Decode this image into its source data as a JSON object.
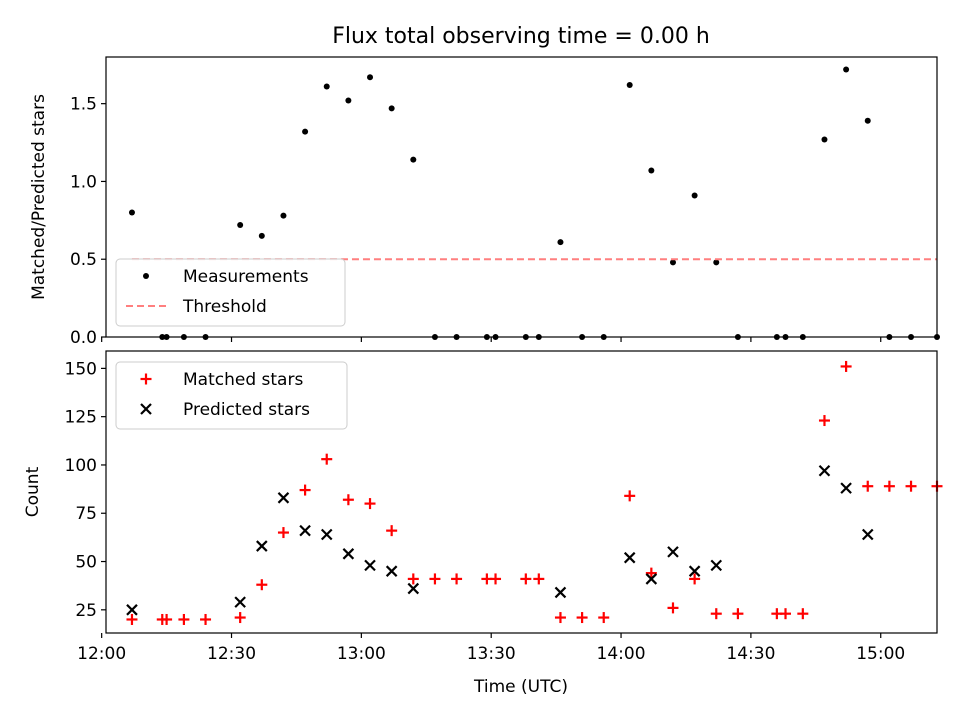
{
  "title": "Flux total observing time = 0.00 h",
  "xlabel": "Time (UTC)",
  "colors": {
    "matched": "#ff0000",
    "predicted": "#000000",
    "measurements": "#000000",
    "threshold": "#ff7f7f"
  },
  "chart_data": [
    {
      "type": "scatter",
      "title": "Flux total observing time = 0.00 h",
      "xlabel": "",
      "ylabel": "Matched/Predicted stars",
      "xlim": [
        "12:01",
        "15:13"
      ],
      "ylim": [
        0,
        1.8
      ],
      "x_ticks": [
        "12:00",
        "12:30",
        "13:00",
        "13:30",
        "14:00",
        "14:30",
        "15:00"
      ],
      "y_ticks": [
        "0.0",
        "0.5",
        "1.0",
        "1.5"
      ],
      "legend": "lower-left",
      "series": [
        {
          "name": "Measurements",
          "marker": "dot",
          "points": [
            [
              "12:07",
              0.8
            ],
            [
              "12:14",
              0
            ],
            [
              "12:15",
              0
            ],
            [
              "12:19",
              0
            ],
            [
              "12:24",
              0
            ],
            [
              "12:32",
              0.72
            ],
            [
              "12:37",
              0.65
            ],
            [
              "12:42",
              0.78
            ],
            [
              "12:47",
              1.32
            ],
            [
              "12:52",
              1.61
            ],
            [
              "12:57",
              1.52
            ],
            [
              "13:02",
              1.67
            ],
            [
              "13:07",
              1.47
            ],
            [
              "13:12",
              1.14
            ],
            [
              "13:17",
              0
            ],
            [
              "13:22",
              0
            ],
            [
              "13:29",
              0
            ],
            [
              "13:31",
              0
            ],
            [
              "13:38",
              0
            ],
            [
              "13:41",
              0
            ],
            [
              "13:46",
              0.61
            ],
            [
              "13:51",
              0
            ],
            [
              "13:56",
              0
            ],
            [
              "14:02",
              1.62
            ],
            [
              "14:07",
              1.07
            ],
            [
              "14:12",
              0.48
            ],
            [
              "14:17",
              0.91
            ],
            [
              "14:22",
              0.48
            ],
            [
              "14:27",
              0
            ],
            [
              "14:36",
              0
            ],
            [
              "14:38",
              0
            ],
            [
              "14:42",
              0
            ],
            [
              "14:47",
              1.27
            ],
            [
              "14:52",
              1.72
            ],
            [
              "14:57",
              1.39
            ],
            [
              "15:02",
              0
            ],
            [
              "15:07",
              0
            ],
            [
              "15:13",
              0
            ]
          ]
        },
        {
          "name": "Threshold",
          "style": "dashed",
          "points": [
            [
              "12:07",
              0.5
            ],
            [
              "15:13",
              0.5
            ]
          ]
        }
      ]
    },
    {
      "type": "scatter",
      "xlabel": "Time (UTC)",
      "ylabel": "Count",
      "xlim": [
        "12:01",
        "15:13"
      ],
      "ylim": [
        13,
        159
      ],
      "x_ticks": [
        "12:00",
        "12:30",
        "13:00",
        "13:30",
        "14:00",
        "14:30",
        "15:00"
      ],
      "y_ticks": [
        "25",
        "50",
        "75",
        "100",
        "125",
        "150"
      ],
      "legend": "top-left",
      "series": [
        {
          "name": "Matched stars",
          "marker": "plus",
          "points": [
            [
              "12:07",
              20
            ],
            [
              "12:14",
              20
            ],
            [
              "12:15",
              20
            ],
            [
              "12:19",
              20
            ],
            [
              "12:24",
              20
            ],
            [
              "12:32",
              21
            ],
            [
              "12:37",
              38
            ],
            [
              "12:42",
              65
            ],
            [
              "12:47",
              87
            ],
            [
              "12:52",
              103
            ],
            [
              "12:57",
              82
            ],
            [
              "13:02",
              80
            ],
            [
              "13:07",
              66
            ],
            [
              "13:12",
              41
            ],
            [
              "13:17",
              41
            ],
            [
              "13:22",
              41
            ],
            [
              "13:29",
              41
            ],
            [
              "13:31",
              41
            ],
            [
              "13:38",
              41
            ],
            [
              "13:41",
              41
            ],
            [
              "13:46",
              21
            ],
            [
              "13:51",
              21
            ],
            [
              "13:56",
              21
            ],
            [
              "14:02",
              84
            ],
            [
              "14:07",
              44
            ],
            [
              "14:12",
              26
            ],
            [
              "14:17",
              41
            ],
            [
              "14:22",
              23
            ],
            [
              "14:27",
              23
            ],
            [
              "14:36",
              23
            ],
            [
              "14:38",
              23
            ],
            [
              "14:42",
              23
            ],
            [
              "14:47",
              123
            ],
            [
              "14:52",
              151
            ],
            [
              "14:57",
              89
            ],
            [
              "15:02",
              89
            ],
            [
              "15:07",
              89
            ],
            [
              "15:13",
              89
            ]
          ]
        },
        {
          "name": "Predicted stars",
          "marker": "x",
          "points": [
            [
              "12:07",
              25
            ],
            [
              "12:32",
              29
            ],
            [
              "12:37",
              58
            ],
            [
              "12:42",
              83
            ],
            [
              "12:47",
              66
            ],
            [
              "12:52",
              64
            ],
            [
              "12:57",
              54
            ],
            [
              "13:02",
              48
            ],
            [
              "13:07",
              45
            ],
            [
              "13:12",
              36
            ],
            [
              "13:46",
              34
            ],
            [
              "14:02",
              52
            ],
            [
              "14:07",
              41
            ],
            [
              "14:12",
              55
            ],
            [
              "14:17",
              45
            ],
            [
              "14:22",
              48
            ],
            [
              "14:47",
              97
            ],
            [
              "14:52",
              88
            ],
            [
              "14:57",
              64
            ]
          ]
        }
      ]
    }
  ]
}
